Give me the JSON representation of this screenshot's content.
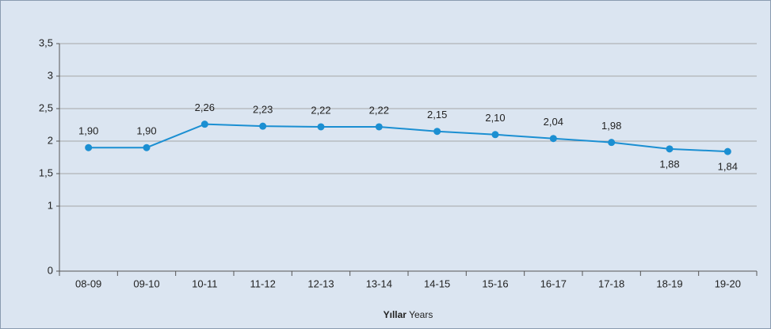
{
  "chart_data": {
    "type": "line",
    "categories": [
      "08-09",
      "09-10",
      "10-11",
      "11-12",
      "12-13",
      "13-14",
      "14-15",
      "15-16",
      "16-17",
      "17-18",
      "18-19",
      "19-20"
    ],
    "values": [
      1.9,
      1.9,
      2.26,
      2.23,
      2.22,
      2.22,
      2.15,
      2.1,
      2.04,
      1.98,
      1.88,
      1.84
    ],
    "value_labels": [
      "1,90",
      "1,90",
      "2,26",
      "2,23",
      "2,22",
      "2,22",
      "2,15",
      "2,10",
      "2,04",
      "1,98",
      "1,88",
      "1,84"
    ],
    "color": "#1b8fd2",
    "ylim": [
      0,
      3.5
    ],
    "yticks": [
      0,
      1,
      {
        "value": 1.5,
        "label": "1,5"
      },
      2,
      {
        "value": 2.5,
        "label": "2,5"
      },
      3,
      {
        "value": 3.5,
        "label": "3,5"
      }
    ],
    "grid": true,
    "xlabel": [
      "Yıllar",
      "Years"
    ]
  }
}
